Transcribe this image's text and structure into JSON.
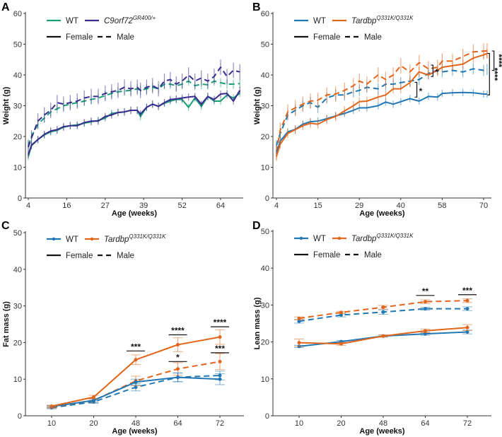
{
  "chart_data": [
    {
      "panel": "A",
      "type": "line",
      "xlabel": "Age (weeks)",
      "ylabel": "Weight (g)",
      "xticks": [
        4,
        16,
        27,
        39,
        52,
        64
      ],
      "ylim": [
        0,
        60
      ],
      "yticks": [
        0,
        10,
        20,
        30,
        40,
        50,
        60
      ],
      "legend": {
        "genotypes": [
          {
            "label": "WT",
            "color": "#1b9e77"
          },
          {
            "label": "C9orf72",
            "sup": "GR400/+",
            "color": "#3a2c8e"
          }
        ],
        "styles": [
          "Female",
          "Male"
        ],
        "placement": "top-left"
      },
      "x": [
        4,
        5,
        7,
        9,
        11,
        13,
        15,
        17,
        19,
        21,
        23,
        25,
        27,
        29,
        31,
        33,
        35,
        37,
        38,
        40,
        42,
        44,
        46,
        48,
        50,
        52,
        54,
        56,
        58,
        60,
        62,
        64,
        66,
        68,
        70
      ],
      "series": [
        {
          "genotype": 0,
          "sex": "Female",
          "err": 1.2,
          "values": [
            13.5,
            17,
            19,
            20.5,
            21.5,
            22,
            23,
            23.5,
            23.8,
            24.3,
            24.8,
            25.2,
            26,
            27.5,
            27.8,
            28,
            28.5,
            28.5,
            26.5,
            29.5,
            30.5,
            29.8,
            30.8,
            31.5,
            32,
            32,
            29.5,
            32.5,
            29.8,
            33,
            31.5,
            31.5,
            33.5,
            32.5,
            34
          ]
        },
        {
          "genotype": 1,
          "sex": "Female",
          "err": 1.2,
          "values": [
            14,
            17.2,
            19,
            20.7,
            21.8,
            22.2,
            23.2,
            23.5,
            23.5,
            24.5,
            25,
            25,
            26.5,
            27,
            27.8,
            28,
            28.5,
            28.5,
            27.3,
            29.5,
            30.5,
            29.8,
            31,
            32,
            32.2,
            32.5,
            32.8,
            33,
            30.5,
            33,
            32,
            33.8,
            34,
            31.5,
            35
          ]
        },
        {
          "genotype": 0,
          "sex": "Male",
          "err": 1.5,
          "values": [
            17,
            20,
            24,
            26,
            28,
            29,
            30,
            30.5,
            31,
            31.5,
            32,
            32.5,
            33.3,
            34,
            34.5,
            34.8,
            35,
            35.5,
            35,
            35.5,
            36,
            35.5,
            37,
            37,
            36.5,
            37,
            38,
            36.5,
            37,
            36.8,
            38,
            37.5,
            37,
            37,
            37.2
          ]
        },
        {
          "genotype": 1,
          "sex": "Male",
          "err": 2.5,
          "values": [
            16.5,
            19.5,
            25,
            27,
            28.5,
            31,
            30.5,
            31,
            31.5,
            32.5,
            33,
            33,
            34,
            34.5,
            35,
            36,
            35.5,
            36,
            35,
            36,
            36.5,
            35.5,
            38,
            38.5,
            37,
            38,
            40,
            38,
            39,
            38,
            39.5,
            42.5,
            39.5,
            41.5,
            41
          ]
        }
      ],
      "significance": []
    },
    {
      "panel": "B",
      "type": "line",
      "xlabel": "Age (weeks)",
      "ylabel": "Weight (g)",
      "xticks": [
        4,
        15,
        29,
        40,
        58,
        70
      ],
      "ylim": [
        0,
        60
      ],
      "yticks": [
        0,
        10,
        20,
        30,
        40,
        50,
        60
      ],
      "legend": {
        "genotypes": [
          {
            "label": "WT",
            "color": "#1f78b4"
          },
          {
            "label": "Tardbp",
            "sup": "Q331K/Q331K",
            "color": "#e1651a"
          }
        ],
        "styles": [
          "Female",
          "Male"
        ],
        "placement": "top-left"
      },
      "x": [
        4,
        5,
        7,
        9,
        11,
        13,
        15,
        18,
        21,
        24,
        27,
        29,
        31,
        34,
        36,
        38,
        40,
        44,
        48,
        52,
        56,
        58,
        61,
        64,
        67,
        70,
        71
      ],
      "series": [
        {
          "genotype": 0,
          "sex": "Female",
          "err": 1.2,
          "values": [
            14.5,
            18.5,
            21.5,
            22.3,
            24,
            24.8,
            25,
            25.8,
            26.7,
            27.5,
            28.5,
            29.3,
            29.3,
            30,
            31.2,
            30.5,
            31.3,
            32.3,
            31.5,
            33,
            32.8,
            34,
            34.2,
            34.3,
            34.2,
            33.8,
            33.8
          ]
        },
        {
          "genotype": 1,
          "sex": "Female",
          "err": 1.5,
          "values": [
            13.5,
            17.5,
            21,
            22.2,
            23.5,
            24.3,
            24,
            25.5,
            26.5,
            28.3,
            30,
            31.3,
            31.5,
            32.8,
            33.5,
            35.5,
            35.5,
            37.5,
            41,
            40,
            41.5,
            42.5,
            43,
            43.5,
            45.5,
            46.5,
            47
          ]
        },
        {
          "genotype": 0,
          "sex": "Male",
          "err": 1.8,
          "values": [
            17,
            21,
            27,
            28.5,
            30,
            31,
            29.5,
            32.5,
            33.5,
            33.5,
            34.5,
            35,
            36,
            35.5,
            37,
            37,
            37.5,
            38,
            38.5,
            40.5,
            41.5,
            41,
            41.5,
            41,
            42,
            41.5,
            41.8
          ]
        },
        {
          "genotype": 1,
          "sex": "Male",
          "err": 2.5,
          "values": [
            15,
            22,
            28,
            29.3,
            30.5,
            31.5,
            31.8,
            33.5,
            33.8,
            35,
            36.5,
            38,
            37,
            40,
            38.5,
            40,
            43,
            41,
            44,
            42,
            42.5,
            44.5,
            44.5,
            46,
            47.5,
            47.8,
            47.8
          ]
        }
      ],
      "significance": [
        {
          "x": 47,
          "y": [
            32.8,
            37.6
          ],
          "label": "*"
        },
        {
          "x": 54,
          "y": [
            39.5,
            43.2
          ],
          "label": "*"
        },
        {
          "x": 71.7,
          "y": [
            33.5,
            47
          ],
          "label": "****"
        },
        {
          "x": 73,
          "y": [
            41.5,
            47.8
          ],
          "label": "****"
        }
      ]
    },
    {
      "panel": "C",
      "type": "line",
      "xlabel": "Age (weeks)",
      "ylabel": "Fat mass (g)",
      "categories": [
        "10",
        "20",
        "48",
        "64",
        "72"
      ],
      "ylim": [
        0,
        50
      ],
      "yticks": [
        0,
        10,
        20,
        30,
        40,
        50
      ],
      "legend": {
        "genotypes": [
          {
            "label": "WT",
            "color": "#1f78b4"
          },
          {
            "label": "Tardbp",
            "sup": "Q331K/Q331K",
            "color": "#e1651a"
          }
        ],
        "styles": [
          "Female",
          "Male"
        ],
        "placement": "top-left"
      },
      "series": [
        {
          "genotype": 0,
          "sex": "Female",
          "values": [
            2.5,
            4.2,
            9.2,
            10.5,
            10
          ],
          "err": [
            0.3,
            0.5,
            0.8,
            1.2,
            1.5
          ]
        },
        {
          "genotype": 1,
          "sex": "Female",
          "values": [
            2.6,
            5.1,
            15.3,
            19.4,
            21.5
          ],
          "err": [
            0.3,
            0.5,
            1.3,
            1.9,
            2.0
          ]
        },
        {
          "genotype": 0,
          "sex": "Male",
          "values": [
            2.2,
            3.8,
            7.8,
            10.5,
            11
          ],
          "err": [
            0.3,
            0.4,
            1.0,
            1.2,
            1.2
          ]
        },
        {
          "genotype": 1,
          "sex": "Male",
          "values": [
            2.4,
            4.2,
            9.5,
            12.8,
            14.8
          ],
          "err": [
            0.3,
            0.5,
            1.3,
            1.7,
            2.2
          ]
        }
      ],
      "significance": [
        {
          "category": 2,
          "y": 17.7,
          "label": "***"
        },
        {
          "category": 3,
          "y": 22.1,
          "label": "****"
        },
        {
          "category": 3,
          "y": 14.8,
          "label": "*"
        },
        {
          "category": 4,
          "y": 24.3,
          "label": "****"
        },
        {
          "category": 4,
          "y": 17.2,
          "label": "***"
        }
      ]
    },
    {
      "panel": "D",
      "type": "line",
      "xlabel": "Age (weeks)",
      "ylabel": "Lean mass (g)",
      "categories": [
        "10",
        "20",
        "48",
        "64",
        "72"
      ],
      "ylim": [
        0,
        50
      ],
      "yticks": [
        0,
        10,
        20,
        30,
        40,
        50
      ],
      "legend": {
        "genotypes": [
          {
            "label": "WT",
            "color": "#1f78b4"
          },
          {
            "label": "Tardbp",
            "sup": "Q331K/Q331K",
            "color": "#e1651a"
          }
        ],
        "styles": [
          "Female",
          "Male"
        ],
        "placement": "top-left"
      },
      "series": [
        {
          "genotype": 0,
          "sex": "Female",
          "values": [
            18.8,
            20.1,
            21.6,
            22.2,
            22.7
          ],
          "err": [
            0.3,
            0.3,
            0.3,
            0.4,
            0.5
          ]
        },
        {
          "genotype": 1,
          "sex": "Female",
          "values": [
            19.8,
            19.5,
            21.6,
            23,
            23.9
          ],
          "err": [
            1.0,
            0.4,
            0.3,
            0.5,
            0.8
          ]
        },
        {
          "genotype": 0,
          "sex": "Male",
          "values": [
            25.6,
            27.3,
            28.1,
            29,
            29
          ],
          "err": [
            0.5,
            0.5,
            0.6,
            0.4,
            0.5
          ]
        },
        {
          "genotype": 1,
          "sex": "Male",
          "values": [
            26.4,
            28,
            29.4,
            30.9,
            31.2
          ],
          "err": [
            0.4,
            0.3,
            0.5,
            0.5,
            0.5
          ]
        }
      ],
      "significance": [
        {
          "category": 3,
          "y": 32.6,
          "label": "**"
        },
        {
          "category": 4,
          "y": 32.8,
          "label": "***"
        }
      ]
    }
  ]
}
